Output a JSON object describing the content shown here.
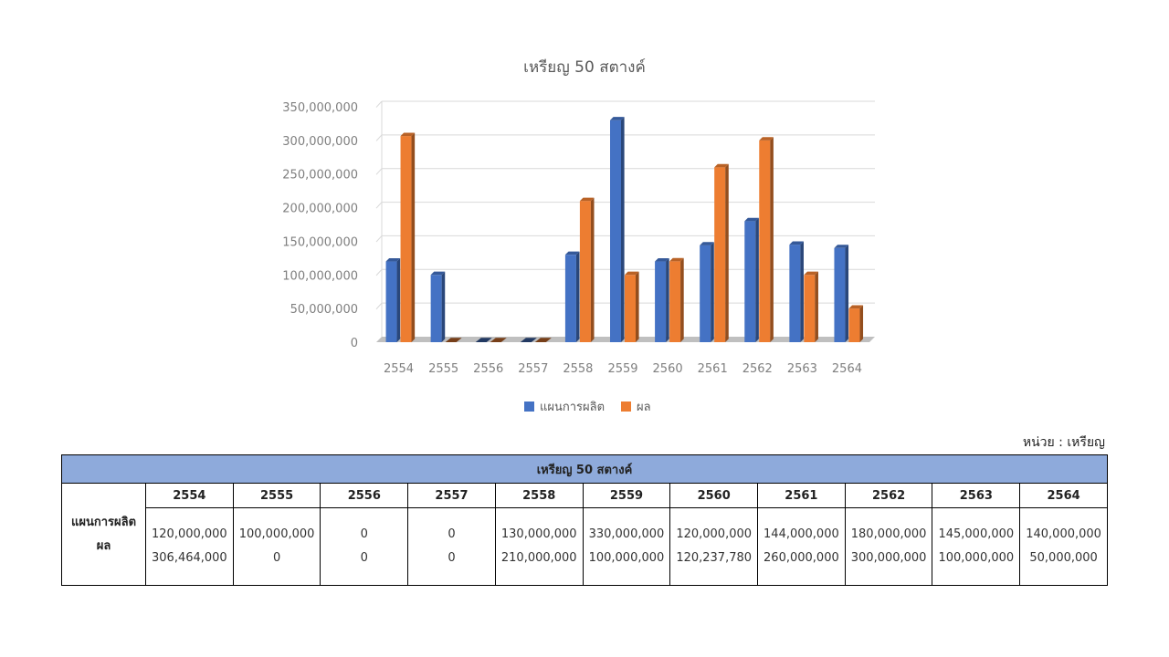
{
  "chart_data": {
    "type": "bar",
    "title": "เหรียญ 50 สตางค์",
    "categories": [
      "2554",
      "2555",
      "2556",
      "2557",
      "2558",
      "2559",
      "2560",
      "2561",
      "2562",
      "2563",
      "2564"
    ],
    "series": [
      {
        "name": "แผนการผลิต",
        "color": "#4472c4",
        "values": [
          120000000,
          100000000,
          0,
          0,
          130000000,
          330000000,
          120000000,
          144000000,
          180000000,
          145000000,
          140000000
        ]
      },
      {
        "name": "ผล",
        "color": "#ed7d31",
        "values": [
          306464000,
          0,
          0,
          0,
          210000000,
          100000000,
          120237780,
          260000000,
          300000000,
          100000000,
          50000000
        ]
      }
    ],
    "yticks": [
      "0",
      "50,000,000",
      "100,000,000",
      "150,000,000",
      "200,000,000",
      "250,000,000",
      "300,000,000",
      "350,000,000"
    ],
    "ylim": [
      0,
      350000000
    ],
    "grid": true,
    "legend": "bottom"
  },
  "unit_label": "หน่วย : เหรียญ",
  "table": {
    "title": "เหรียญ 50 สตางค์",
    "years": [
      "2554",
      "2555",
      "2556",
      "2557",
      "2558",
      "2559",
      "2560",
      "2561",
      "2562",
      "2563",
      "2564"
    ],
    "row_labels": [
      "แผนการผลิต",
      "ผล"
    ],
    "plan": [
      "120,000,000",
      "100,000,000",
      "0",
      "0",
      "130,000,000",
      "330,000,000",
      "120,000,000",
      "144,000,000",
      "180,000,000",
      "145,000,000",
      "140,000,000"
    ],
    "result": [
      "306,464,000",
      "0",
      "0",
      "0",
      "210,000,000",
      "100,000,000",
      "120,237,780",
      "260,000,000",
      "300,000,000",
      "100,000,000",
      "50,000,000"
    ]
  }
}
